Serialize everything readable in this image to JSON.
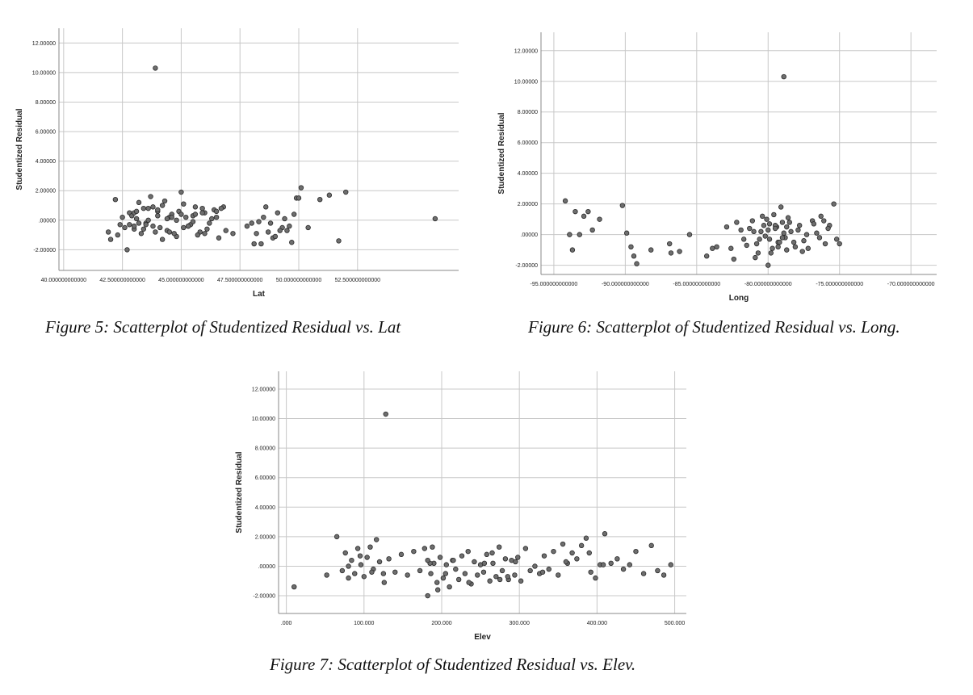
{
  "chart_data": [
    {
      "type": "scatter",
      "xlabel": "Lat",
      "ylabel": "Studentized Residual",
      "xlim": [
        39.8,
        56.8
      ],
      "ylim": [
        -3.4,
        13.0
      ],
      "xticks": [
        40,
        42.5,
        45,
        47.5,
        50,
        52.5
      ],
      "xtick_labels": [
        "40.000000000000",
        "42.500000000000",
        "45.000000000000",
        "47.500000000000",
        "50.000000000000",
        "52.500000000000"
      ],
      "yticks": [
        -2,
        0,
        2,
        4,
        6,
        8,
        10,
        12
      ],
      "ytick_labels": [
        "-2.00000",
        ".00000",
        "2.00000",
        "4.00000",
        "6.00000",
        "8.00000",
        "10.00000",
        "12.00000"
      ],
      "grid": true,
      "caption": "Figure 5: Scatterplot of Studentized Residual vs. Lat",
      "x": [
        43.9,
        42.2,
        41.9,
        42.0,
        42.4,
        42.6,
        42.5,
        42.8,
        43.0,
        43.2,
        43.4,
        43.5,
        43.1,
        43.3,
        42.9,
        43.7,
        43.8,
        44.0,
        44.2,
        44.4,
        44.6,
        44.8,
        45.0,
        45.2,
        45.4,
        45.6,
        45.8,
        46.0,
        46.2,
        46.4,
        46.6,
        46.8,
        43.6,
        44.1,
        44.3,
        44.5,
        44.7,
        44.9,
        45.1,
        45.3,
        45.5,
        45.7,
        45.9,
        46.1,
        46.3,
        46.5,
        43.0,
        43.5,
        44.0,
        44.5,
        45.0,
        45.5,
        43.2,
        43.8,
        44.6,
        45.1,
        45.6,
        46.0,
        46.5,
        44.2,
        43.4,
        42.7,
        42.8,
        43.1,
        43.9,
        44.4,
        45.3,
        46.7,
        47.2,
        47.8,
        48.1,
        48.3,
        48.5,
        48.7,
        48.9,
        49.1,
        49.3,
        49.5,
        49.7,
        49.9,
        50.1,
        50.4,
        50.9,
        51.3,
        51.7,
        52.0,
        48.2,
        48.6,
        49.0,
        49.4,
        49.8,
        48.4,
        48.8,
        49.2,
        49.6,
        50.0,
        48.0,
        55.8,
        43.6,
        44.0,
        42.3,
        43.0,
        44.8,
        45.9,
        46.9
      ],
      "y": [
        10.3,
        1.4,
        -0.8,
        -1.3,
        -0.3,
        -0.5,
        0.2,
        0.5,
        -0.6,
        1.2,
        0.8,
        -0.2,
        0.1,
        -0.9,
        0.3,
        1.6,
        -0.4,
        0.6,
        1.0,
        -0.7,
        0.4,
        -1.1,
        1.9,
        0.2,
        -0.3,
        0.9,
        -0.8,
        0.5,
        -0.2,
        0.7,
        -1.2,
        0.9,
        0.0,
        -0.5,
        1.3,
        0.2,
        -0.9,
        0.6,
        1.1,
        -0.4,
        0.3,
        -1.0,
        0.8,
        -0.6,
        0.1,
        0.6,
        0.5,
        -0.3,
        0.7,
        -0.8,
        0.4,
        -0.1,
        -0.2,
        0.9,
        0.2,
        -0.5,
        0.4,
        -0.9,
        0.2,
        -1.3,
        -0.6,
        -2.0,
        -0.3,
        0.6,
        -0.8,
        0.1,
        -0.4,
        0.8,
        -0.9,
        -0.4,
        -1.6,
        -0.1,
        0.2,
        -0.8,
        -1.2,
        0.5,
        -0.5,
        -0.7,
        -1.5,
        1.5,
        2.2,
        -0.5,
        1.4,
        1.7,
        -1.4,
        1.9,
        -0.9,
        0.9,
        -1.1,
        0.1,
        0.4,
        -1.6,
        -0.2,
        -0.7,
        -0.4,
        1.5,
        -0.2,
        0.1,
        0.8,
        0.3,
        -1.0,
        -0.4,
        0.0,
        0.5,
        -0.7
      ]
    },
    {
      "type": "scatter",
      "xlabel": "Long",
      "ylabel": "Studentized Residual",
      "xlim": [
        -95.9,
        -68.2
      ],
      "ylim": [
        -2.6,
        13.2
      ],
      "xticks": [
        -95,
        -90,
        -85,
        -80,
        -75,
        -70
      ],
      "xtick_labels": [
        "-95.000000000000",
        "-90.000000000000",
        "-85.000000000000",
        "-80.000000000000",
        "-75.000000000000",
        "-70.000000000000"
      ],
      "yticks": [
        -2,
        0,
        2,
        4,
        6,
        8,
        10,
        12
      ],
      "ytick_labels": [
        "-2.00000",
        ".00000",
        "2.00000",
        "4.00000",
        "6.00000",
        "8.00000",
        "10.00000",
        "12.00000"
      ],
      "grid": true,
      "caption": "Figure 6: Scatterplot of Studentized Residual vs. Long.",
      "x": [
        -78.9,
        -94.2,
        -93.7,
        -93.5,
        -93.2,
        -92.9,
        -92.6,
        -92.3,
        -91.8,
        -93.9,
        -90.2,
        -89.9,
        -89.6,
        -89.4,
        -89.2,
        -88.2,
        -86.9,
        -86.2,
        -85.5,
        -84.3,
        -83.6,
        -82.9,
        -82.4,
        -81.9,
        -81.5,
        -81.1,
        -80.7,
        -80.3,
        -79.9,
        -79.6,
        -79.3,
        -79.0,
        -78.7,
        -78.4,
        -78.1,
        -77.8,
        -77.5,
        -77.2,
        -76.9,
        -76.6,
        -76.3,
        -76.0,
        -75.7,
        -75.4,
        -75.2,
        -75.0,
        -82.6,
        -82.2,
        -81.7,
        -81.3,
        -80.9,
        -80.5,
        -80.1,
        -79.7,
        -79.4,
        -79.1,
        -78.8,
        -78.5,
        -78.2,
        -77.9,
        -77.6,
        -77.3,
        -76.8,
        -76.4,
        -76.1,
        -75.8,
        -80.8,
        -80.4,
        -80.0,
        -79.8,
        -79.5,
        -79.2,
        -78.9,
        -78.6,
        -79.0,
        -79.5,
        -80.2,
        -81.0,
        -80.6,
        -79.9,
        -79.3,
        -78.7,
        -80.0,
        -86.8,
        -83.9
      ],
      "y": [
        10.3,
        2.2,
        -1.0,
        1.5,
        0.0,
        1.2,
        1.5,
        0.3,
        1.0,
        0.0,
        1.9,
        0.1,
        -0.8,
        -1.4,
        -1.9,
        -1.0,
        -0.6,
        -1.1,
        0.0,
        -1.4,
        -0.8,
        0.5,
        -1.6,
        0.3,
        -0.7,
        0.9,
        -1.2,
        0.6,
        -0.3,
        1.3,
        -0.5,
        0.8,
        -1.0,
        0.2,
        -0.8,
        0.6,
        -0.4,
        -0.9,
        0.9,
        0.1,
        1.2,
        -0.6,
        0.6,
        2.0,
        -0.3,
        -0.6,
        -0.9,
        0.8,
        -0.3,
        0.4,
        -1.5,
        0.2,
        1.0,
        -0.9,
        0.5,
        1.8,
        -0.2,
        0.8,
        -0.5,
        0.3,
        -1.1,
        0.0,
        0.7,
        -0.2,
        0.9,
        0.4,
        -0.6,
        1.2,
        0.3,
        -1.2,
        0.6,
        -0.5,
        0.1,
        1.1,
        -0.2,
        0.4,
        -0.1,
        0.2,
        -0.3,
        0.7,
        -0.8,
        0.5,
        -2.0,
        -1.2,
        -0.9
      ]
    },
    {
      "type": "scatter",
      "xlabel": "Elev",
      "ylabel": "Studentized Residual",
      "xlim": [
        -10,
        515
      ],
      "ylim": [
        -3.2,
        13.2
      ],
      "xticks": [
        0,
        100,
        200,
        300,
        400,
        500
      ],
      "xtick_labels": [
        ".000",
        "100.000",
        "200.000",
        "300.000",
        "400.000",
        "500.000"
      ],
      "yticks": [
        -2,
        0,
        2,
        4,
        6,
        8,
        10,
        12
      ],
      "ytick_labels": [
        "-2.00000",
        ".00000",
        "2.00000",
        "4.00000",
        "6.00000",
        "8.00000",
        "10.00000",
        "12.00000"
      ],
      "grid": true,
      "caption": "Figure 7: Scatterplot of Studentized Residual vs. Elev.",
      "x": [
        128,
        10,
        52,
        65,
        72,
        76,
        80,
        84,
        88,
        92,
        96,
        100,
        104,
        108,
        112,
        116,
        120,
        126,
        132,
        140,
        148,
        156,
        164,
        172,
        178,
        182,
        186,
        190,
        194,
        198,
        202,
        206,
        210,
        214,
        218,
        222,
        226,
        230,
        234,
        238,
        242,
        246,
        250,
        254,
        258,
        262,
        266,
        270,
        274,
        278,
        282,
        286,
        290,
        294,
        298,
        302,
        308,
        314,
        320,
        326,
        332,
        338,
        344,
        350,
        356,
        362,
        368,
        374,
        380,
        386,
        392,
        398,
        404,
        410,
        418,
        426,
        434,
        442,
        450,
        460,
        470,
        478,
        486,
        495,
        80,
        95,
        110,
        125,
        185,
        195,
        215,
        235,
        255,
        275,
        295,
        330,
        360,
        390,
        408,
        182,
        188,
        205,
        265,
        285
      ],
      "y": [
        10.3,
        -1.4,
        -0.6,
        2.0,
        -0.3,
        0.9,
        -0.8,
        0.4,
        -0.5,
        1.2,
        0.1,
        -0.7,
        0.6,
        1.3,
        -0.2,
        1.8,
        0.3,
        -1.1,
        0.5,
        -0.4,
        0.8,
        -0.6,
        1.0,
        -0.3,
        1.2,
        -2.0,
        -0.5,
        0.2,
        -1.1,
        0.6,
        -0.8,
        0.1,
        -1.4,
        0.4,
        -0.2,
        -0.9,
        0.7,
        -0.5,
        1.0,
        -1.2,
        0.3,
        -0.6,
        0.1,
        -0.4,
        0.8,
        -1.0,
        0.2,
        -0.7,
        1.3,
        -0.3,
        0.5,
        -0.9,
        0.4,
        -0.6,
        0.6,
        -1.0,
        1.2,
        -0.3,
        0.0,
        -0.5,
        0.7,
        -0.2,
        1.0,
        -0.6,
        1.5,
        0.2,
        0.9,
        0.5,
        1.4,
        1.9,
        -0.4,
        -0.8,
        0.1,
        2.2,
        0.2,
        0.5,
        -0.2,
        0.1,
        1.0,
        -0.5,
        1.4,
        -0.3,
        -0.6,
        0.1,
        0.0,
        0.7,
        -0.4,
        -0.5,
        0.2,
        -1.6,
        0.4,
        -1.1,
        0.2,
        -0.9,
        0.3,
        -0.4,
        0.3,
        0.9,
        0.1,
        0.4,
        1.3,
        -0.5,
        0.9,
        -0.7
      ]
    }
  ]
}
